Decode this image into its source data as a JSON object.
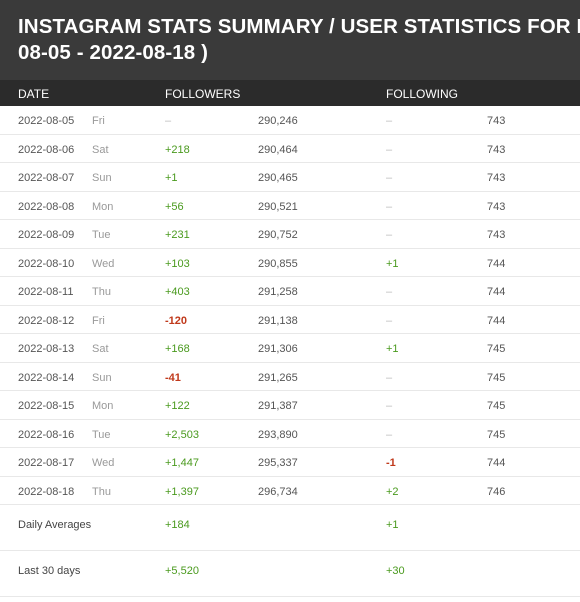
{
  "title": {
    "line1": "INSTAGRAM STATS SUMMARY / USER STATISTICS FOR KIMDUYEN",
    "line2": "08-05 - 2022-08-18 )"
  },
  "columns": {
    "date": "DATE",
    "followers": "FOLLOWERS",
    "following": "FOLLOWING"
  },
  "rows": [
    {
      "date": "2022-08-05",
      "day": "Fri",
      "followers_change": "–",
      "followers_total": "290,246",
      "following_change": "–",
      "following_total": "743"
    },
    {
      "date": "2022-08-06",
      "day": "Sat",
      "followers_change": "+218",
      "followers_total": "290,464",
      "following_change": "–",
      "following_total": "743"
    },
    {
      "date": "2022-08-07",
      "day": "Sun",
      "followers_change": "+1",
      "followers_total": "290,465",
      "following_change": "–",
      "following_total": "743"
    },
    {
      "date": "2022-08-08",
      "day": "Mon",
      "followers_change": "+56",
      "followers_total": "290,521",
      "following_change": "–",
      "following_total": "743"
    },
    {
      "date": "2022-08-09",
      "day": "Tue",
      "followers_change": "+231",
      "followers_total": "290,752",
      "following_change": "–",
      "following_total": "743"
    },
    {
      "date": "2022-08-10",
      "day": "Wed",
      "followers_change": "+103",
      "followers_total": "290,855",
      "following_change": "+1",
      "following_total": "744"
    },
    {
      "date": "2022-08-11",
      "day": "Thu",
      "followers_change": "+403",
      "followers_total": "291,258",
      "following_change": "–",
      "following_total": "744"
    },
    {
      "date": "2022-08-12",
      "day": "Fri",
      "followers_change": "-120",
      "followers_total": "291,138",
      "following_change": "–",
      "following_total": "744"
    },
    {
      "date": "2022-08-13",
      "day": "Sat",
      "followers_change": "+168",
      "followers_total": "291,306",
      "following_change": "+1",
      "following_total": "745"
    },
    {
      "date": "2022-08-14",
      "day": "Sun",
      "followers_change": "-41",
      "followers_total": "291,265",
      "following_change": "–",
      "following_total": "745"
    },
    {
      "date": "2022-08-15",
      "day": "Mon",
      "followers_change": "+122",
      "followers_total": "291,387",
      "following_change": "–",
      "following_total": "745"
    },
    {
      "date": "2022-08-16",
      "day": "Tue",
      "followers_change": "+2,503",
      "followers_total": "293,890",
      "following_change": "–",
      "following_total": "745"
    },
    {
      "date": "2022-08-17",
      "day": "Wed",
      "followers_change": "+1,447",
      "followers_total": "295,337",
      "following_change": "-1",
      "following_total": "744"
    },
    {
      "date": "2022-08-18",
      "day": "Thu",
      "followers_change": "+1,397",
      "followers_total": "296,734",
      "following_change": "+2",
      "following_total": "746"
    }
  ],
  "summary": [
    {
      "label": "Daily Averages",
      "followers_change": "+184",
      "following_change": "+1"
    },
    {
      "label": "Last 30 days",
      "followers_change": "+5,520",
      "following_change": "+30"
    }
  ],
  "colors": {
    "title_bg": "#3a3a3a",
    "header_bg": "#2b2b2b",
    "positive": "#4a9a1e",
    "negative": "#c0391b",
    "neutral": "#bbbbbb"
  }
}
